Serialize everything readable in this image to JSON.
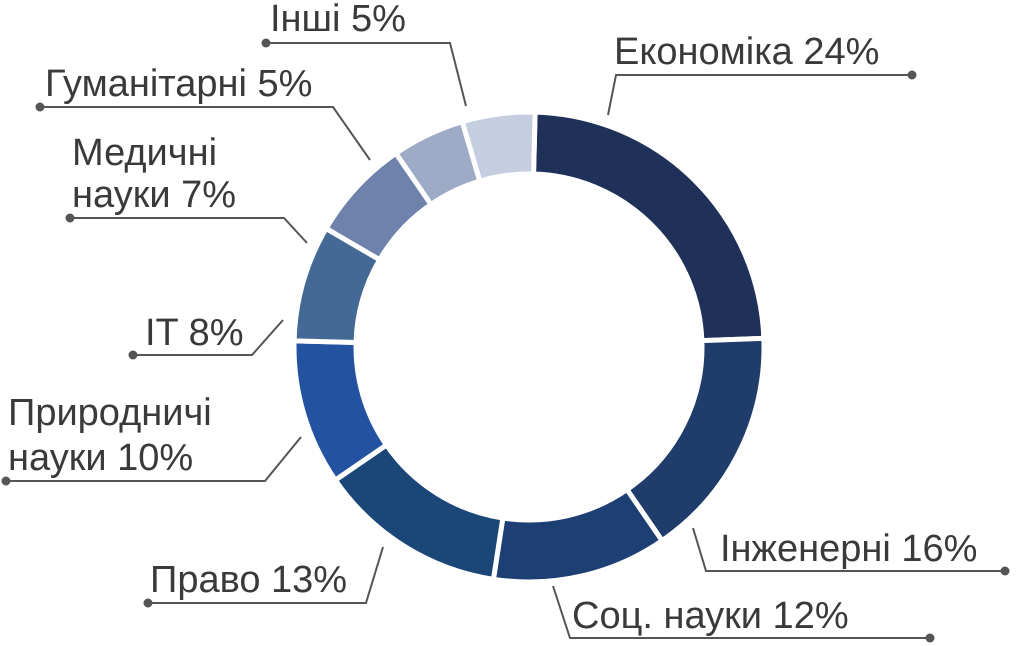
{
  "chart_data": {
    "type": "pie",
    "variant": "donut",
    "title": "",
    "categories": [
      "Економіка",
      "Інженерні",
      "Соц. науки",
      "Право",
      "Природничі науки",
      "IT",
      "Медичні науки",
      "Гуманітарні",
      "Інші"
    ],
    "values": [
      24,
      16,
      12,
      13,
      10,
      8,
      7,
      5,
      5
    ],
    "unit": "%",
    "labels": [
      [
        "Економіка 24%"
      ],
      [
        "Інженерні 16%"
      ],
      [
        "Соц. науки 12%"
      ],
      [
        "Право 13%"
      ],
      [
        "Природничі",
        "науки 10%"
      ],
      [
        "IT 8%"
      ],
      [
        "Медичні",
        "науки 7%"
      ],
      [
        "Гуманітарні 5%"
      ],
      [
        "Інші 5%"
      ]
    ],
    "colors": [
      "#1f3158",
      "#1f3c6a",
      "#1e3f74",
      "#1b4678",
      "#2352a0",
      "#456996",
      "#6e82ac",
      "#9eabc6",
      "#c5cde0"
    ],
    "legend": "none",
    "grid": false
  }
}
